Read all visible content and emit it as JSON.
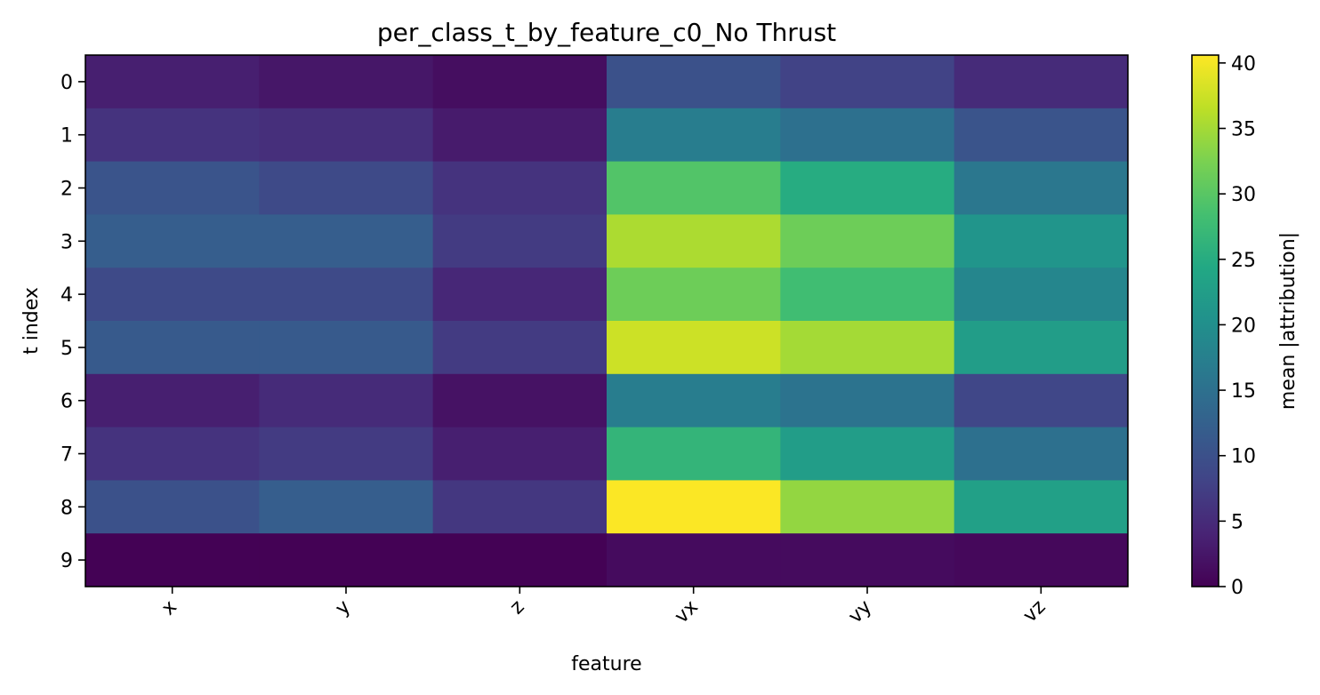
{
  "chart_data": {
    "type": "heatmap",
    "title": "per_class_t_by_feature_c0_No Thrust",
    "xlabel": "feature",
    "ylabel": "t index",
    "x_categories": [
      "x",
      "y",
      "z",
      "vx",
      "vy",
      "vz"
    ],
    "y_categories": [
      "0",
      "1",
      "2",
      "3",
      "4",
      "5",
      "6",
      "7",
      "8",
      "9"
    ],
    "values": [
      [
        3.5,
        2.5,
        1.5,
        10.0,
        8.0,
        5.0
      ],
      [
        6.0,
        5.5,
        3.0,
        17.0,
        15.0,
        10.5
      ],
      [
        10.5,
        9.0,
        6.0,
        29.5,
        25.0,
        16.0
      ],
      [
        12.0,
        12.0,
        7.0,
        35.5,
        31.5,
        21.0
      ],
      [
        9.0,
        9.0,
        4.5,
        31.5,
        28.0,
        18.5
      ],
      [
        11.5,
        11.5,
        7.0,
        37.5,
        35.0,
        22.5
      ],
      [
        3.5,
        5.0,
        2.0,
        17.0,
        15.5,
        8.5
      ],
      [
        6.0,
        7.0,
        3.5,
        26.5,
        22.5,
        15.0
      ],
      [
        10.0,
        12.0,
        6.5,
        40.5,
        34.0,
        23.0
      ],
      [
        0.1,
        0.1,
        0.1,
        1.2,
        1.2,
        0.8
      ]
    ],
    "colormap": "viridis",
    "colorbar": {
      "label": "mean |attribution|",
      "range": [
        0,
        40.6
      ],
      "ticks": [
        0,
        5,
        10,
        15,
        20,
        25,
        30,
        35,
        40
      ]
    }
  }
}
